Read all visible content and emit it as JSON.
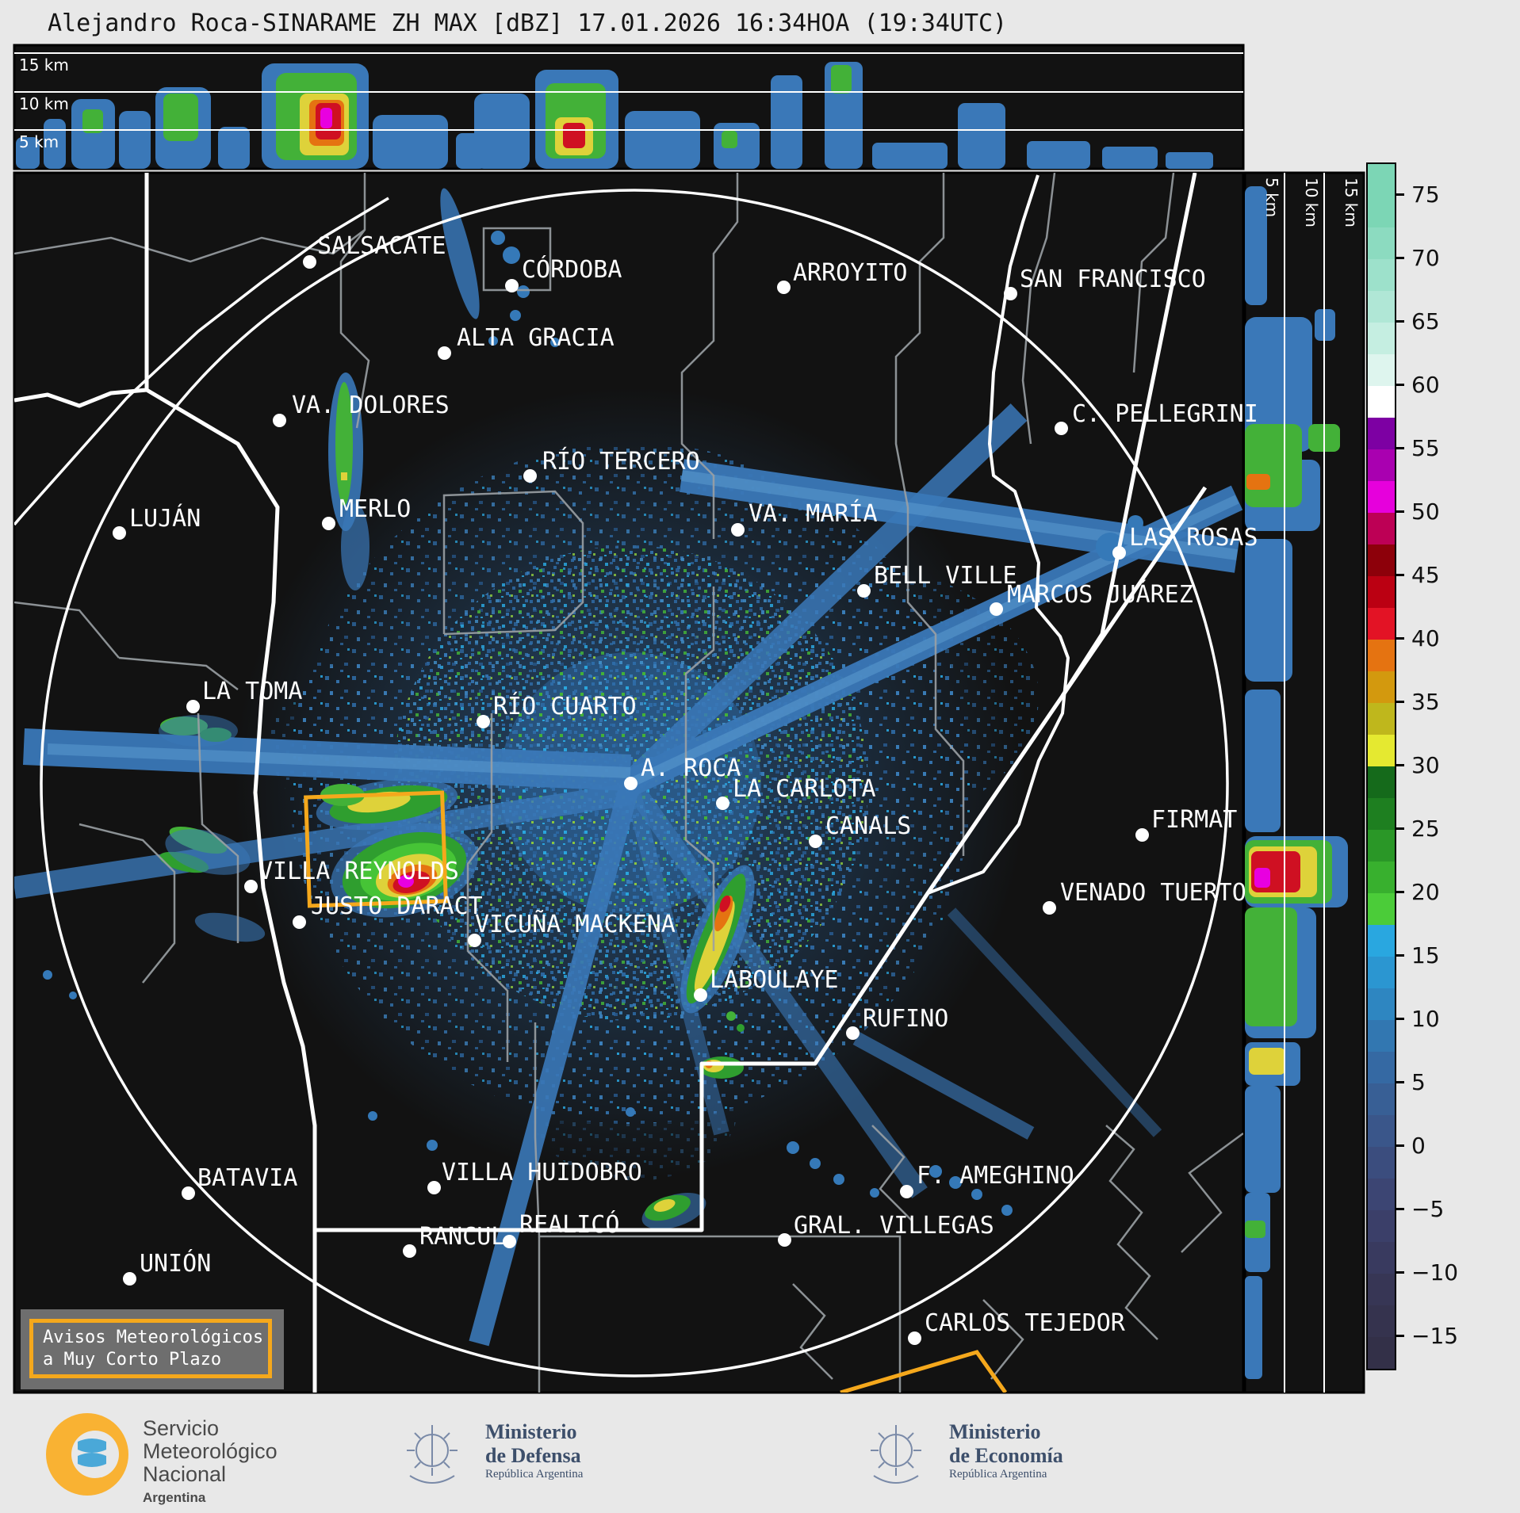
{
  "title": "Alejandro Roca-SINARAME ZH MAX [dBZ] 17.01.2026 16:34HOA (19:34UTC)",
  "top_panel": {
    "altitude_labels": [
      "15 km",
      "10 km",
      "5 km"
    ]
  },
  "right_panel": {
    "altitude_labels": [
      "5 km",
      "10 km",
      "15 km"
    ]
  },
  "colorbar": {
    "unit": "dBZ",
    "tick_labels": [
      "75",
      "70",
      "65",
      "60",
      "55",
      "50",
      "45",
      "40",
      "35",
      "30",
      "25",
      "20",
      "15",
      "10",
      "5",
      "0",
      "−5",
      "−10",
      "−15"
    ],
    "cell_colors": [
      "#7cd6b5",
      "#7cd6b5",
      "#8cdbc0",
      "#9de1cb",
      "#b0e7d6",
      "#c5eee1",
      "#def5ee",
      "#ffffff",
      "#7d00a3",
      "#a900b0",
      "#e600dc",
      "#bd0055",
      "#8d000a",
      "#bb0012",
      "#e31325",
      "#e57311",
      "#d3990e",
      "#bfb71c",
      "#e5e930",
      "#156a1b",
      "#1e7f20",
      "#2a9727",
      "#38b02e",
      "#4bcc39",
      "#29a7e0",
      "#2b96d1",
      "#2e86c1",
      "#3277b1",
      "#3569a3",
      "#385f95",
      "#3a568a",
      "#3b4d7e",
      "#3c4573",
      "#3b3f69",
      "#393a5f",
      "#373655",
      "#35334e",
      "#333048"
    ]
  },
  "map": {
    "cities": [
      {
        "name": "SALSACATE",
        "dot": [
          390,
          330
        ],
        "label": [
          400,
          296
        ]
      },
      {
        "name": "CÓRDOBA",
        "dot": [
          645,
          360
        ],
        "label": [
          658,
          326
        ]
      },
      {
        "name": "ARROYITO",
        "dot": [
          988,
          362
        ],
        "label": [
          1000,
          330
        ]
      },
      {
        "name": "SAN FRANCISCO",
        "dot": [
          1274,
          370
        ],
        "label": [
          1286,
          338
        ]
      },
      {
        "name": "ALTA GRACIA",
        "dot": [
          560,
          445
        ],
        "label": [
          576,
          412
        ]
      },
      {
        "name": "VA. DOLORES",
        "dot": [
          352,
          530
        ],
        "label": [
          368,
          497
        ]
      },
      {
        "name": "RÍO TERCERO",
        "dot": [
          668,
          600
        ],
        "label": [
          684,
          568
        ]
      },
      {
        "name": "C. PELLEGRINI",
        "dot": [
          1338,
          540
        ],
        "label": [
          1352,
          508
        ]
      },
      {
        "name": "LUJÁN",
        "dot": [
          150,
          672
        ],
        "label": [
          163,
          640
        ]
      },
      {
        "name": "MERLO",
        "dot": [
          414,
          660
        ],
        "label": [
          428,
          628
        ]
      },
      {
        "name": "VA. MARÍA",
        "dot": [
          930,
          668
        ],
        "label": [
          944,
          634
        ]
      },
      {
        "name": "LAS ROSAS",
        "dot": [
          1411,
          697
        ],
        "label": [
          1424,
          664
        ]
      },
      {
        "name": "BELL VILLE",
        "dot": [
          1089,
          745
        ],
        "label": [
          1102,
          712
        ]
      },
      {
        "name": "MARCOS JUÁREZ",
        "dot": [
          1256,
          768
        ],
        "label": [
          1270,
          736
        ]
      },
      {
        "name": "LA TOMA",
        "dot": [
          243,
          891
        ],
        "label": [
          255,
          858
        ]
      },
      {
        "name": "RÍO CUARTO",
        "dot": [
          609,
          910
        ],
        "label": [
          622,
          877
        ]
      },
      {
        "name": "A. ROCA",
        "dot": [
          795,
          988
        ],
        "label": [
          808,
          955
        ]
      },
      {
        "name": "LA CARLOTA",
        "dot": [
          911,
          1013
        ],
        "label": [
          924,
          981
        ]
      },
      {
        "name": "CANALS",
        "dot": [
          1028,
          1061
        ],
        "label": [
          1041,
          1028
        ]
      },
      {
        "name": "FIRMAT",
        "dot": [
          1440,
          1053
        ],
        "label": [
          1452,
          1020
        ]
      },
      {
        "name": "VILLA REYNOLDS",
        "dot": [
          316,
          1118
        ],
        "label": [
          326,
          1085
        ]
      },
      {
        "name": "JUSTO DARACT",
        "dot": [
          377,
          1163
        ],
        "label": [
          392,
          1129
        ]
      },
      {
        "name": "VICUÑA MACKENA",
        "dot": [
          598,
          1186
        ],
        "label": [
          599,
          1152
        ]
      },
      {
        "name": "VENADO TUERTO",
        "dot": [
          1323,
          1145
        ],
        "label": [
          1337,
          1112
        ]
      },
      {
        "name": "LABOULAYE",
        "dot": [
          883,
          1255
        ],
        "label": [
          895,
          1222
        ]
      },
      {
        "name": "RUFINO",
        "dot": [
          1075,
          1303
        ],
        "label": [
          1088,
          1271
        ]
      },
      {
        "name": "BATAVIA",
        "dot": [
          237,
          1505
        ],
        "label": [
          249,
          1472
        ]
      },
      {
        "name": "VILLA HUIDOBRO",
        "dot": [
          547,
          1498
        ],
        "label": [
          557,
          1465
        ]
      },
      {
        "name": "F. AMEGHINO",
        "dot": [
          1143,
          1503
        ],
        "label": [
          1156,
          1469
        ]
      },
      {
        "name": "GRAL. VILLEGAS",
        "dot": [
          989,
          1564
        ],
        "label": [
          1001,
          1532
        ]
      },
      {
        "name": "RANCUL",
        "dot": [
          516,
          1578
        ],
        "label": [
          529,
          1546
        ]
      },
      {
        "name": "REALICÓ",
        "dot": [
          642,
          1566
        ],
        "label": [
          655,
          1531
        ]
      },
      {
        "name": "UNIÓN",
        "dot": [
          163,
          1613
        ],
        "label": [
          176,
          1580
        ]
      },
      {
        "name": "CARLOS TEJEDOR",
        "dot": [
          1153,
          1688
        ],
        "label": [
          1166,
          1655
        ]
      }
    ]
  },
  "alert_box": {
    "line1": "Avisos Meteorológicos",
    "line2": "a Muy Corto Plazo"
  },
  "footer": {
    "smn": {
      "line1": "Servicio",
      "line2": "Meteorológico",
      "line3": "Nacional",
      "line4": "Argentina"
    },
    "defensa": {
      "line1": "Ministerio",
      "line2": "de Defensa",
      "line3": "República Argentina"
    },
    "economia": {
      "line1": "Ministerio",
      "line2": "de Economía",
      "line3": "República Argentina"
    }
  },
  "colors": {
    "accent_orange": "#f5a81c",
    "map_bg": "#121212",
    "page_bg": "#e8e8e8",
    "echo_blue": "#3a78b8",
    "label_white": "#ffffff"
  }
}
